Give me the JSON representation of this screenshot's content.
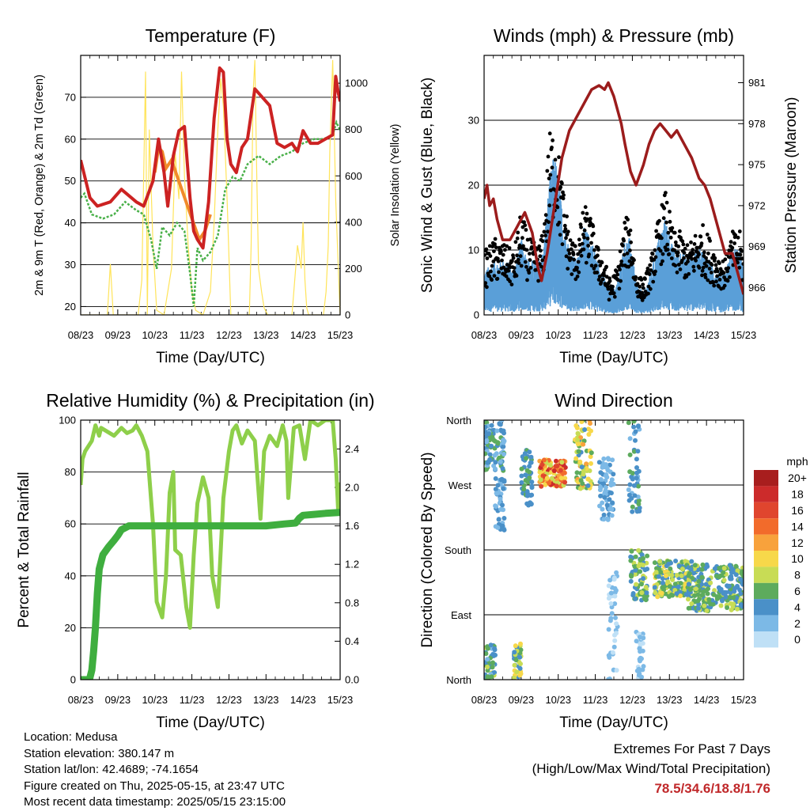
{
  "colors": {
    "temp_2m": "#cc2222",
    "temp_9m": "#f08a2a",
    "dewpoint": "#49b049",
    "insolation": "#ffe45a",
    "wind": "#5a9fd8",
    "gust": "#000000",
    "pressure": "#9b1c1c",
    "rh": "#8ecf4a",
    "rain": "#3fae3f"
  },
  "chart_data": [
    {
      "id": "temperature",
      "type": "line",
      "title": "Temperature (F)",
      "xlabel": "Time (Day/UTC)",
      "ylabel": "2m & 9m T (Red, Orange) & 2m Td (Green)",
      "y2label": "Solar Insolation (Yellow)",
      "xlim": [
        0,
        7
      ],
      "ylim": [
        18,
        80
      ],
      "y2lim": [
        0,
        1120
      ],
      "x_ticks": [
        "08/23",
        "09/23",
        "10/23",
        "11/23",
        "12/23",
        "13/23",
        "14/23",
        "15/23"
      ],
      "y_ticks": [
        20,
        30,
        40,
        50,
        60,
        70
      ],
      "y2_ticks": [
        0,
        200,
        400,
        600,
        800,
        1000
      ],
      "series": [
        {
          "name": "2m T",
          "color_key": "temp_2m",
          "x": [
            0,
            0.25,
            0.45,
            0.8,
            1.1,
            1.5,
            1.7,
            1.95,
            2.1,
            2.25,
            2.35,
            2.5,
            2.65,
            2.8,
            2.95,
            3.05,
            3.15,
            3.3,
            3.45,
            3.6,
            3.75,
            3.85,
            3.95,
            4.05,
            4.2,
            4.35,
            4.5,
            4.7,
            4.9,
            5.1,
            5.3,
            5.5,
            5.7,
            5.85,
            6.0,
            6.2,
            6.4,
            6.6,
            6.8,
            6.88,
            6.95,
            7.0
          ],
          "values": [
            55,
            46,
            44,
            45,
            48,
            45,
            44,
            50,
            60,
            52,
            44,
            56,
            62,
            63,
            46,
            38,
            36,
            34,
            45,
            65,
            77,
            76,
            60,
            54,
            52,
            58,
            60,
            72,
            70,
            68,
            59,
            58,
            59,
            57,
            62,
            59,
            59,
            60,
            61,
            75,
            71,
            69
          ]
        },
        {
          "name": "9m T",
          "color_key": "temp_9m",
          "x": [
            2.0,
            2.1,
            2.2,
            2.3,
            2.45,
            3.2,
            3.35,
            3.5
          ],
          "values": [
            52,
            58,
            57,
            53,
            55,
            36,
            38,
            42
          ]
        },
        {
          "name": "2m Td",
          "color_key": "dewpoint",
          "x": [
            0,
            0.1,
            0.3,
            0.6,
            0.9,
            1.2,
            1.5,
            1.7,
            1.9,
            2.05,
            2.2,
            2.4,
            2.6,
            2.8,
            2.95,
            3.05,
            3.15,
            3.3,
            3.5,
            3.7,
            3.9,
            4.1,
            4.3,
            4.5,
            4.8,
            5.1,
            5.4,
            5.7,
            6.0,
            6.3,
            6.55,
            6.8,
            6.9,
            7.0
          ],
          "values": [
            46,
            47,
            42,
            41,
            42,
            45,
            43,
            42,
            36,
            29,
            39,
            37,
            40,
            38,
            28,
            20,
            34,
            31,
            33,
            37,
            48,
            51,
            50,
            54,
            56,
            54,
            56,
            57,
            59,
            60,
            60,
            61,
            64,
            62
          ]
        },
        {
          "name": "Solar Insolation",
          "color_key": "insolation",
          "axis": "y2",
          "x": [
            0,
            0.3,
            0.5,
            0.72,
            0.8,
            0.88,
            1.05,
            1.55,
            1.65,
            1.75,
            1.8,
            1.85,
            1.95,
            2.05,
            2.25,
            2.45,
            2.55,
            2.65,
            2.72,
            2.8,
            2.9,
            3.0,
            3.1,
            3.3,
            3.5,
            3.6,
            3.7,
            3.78,
            3.85,
            3.95,
            4.05,
            4.25,
            4.55,
            4.6,
            4.65,
            4.7,
            4.75,
            4.8,
            4.88,
            4.95,
            5.05,
            5.5,
            5.7,
            5.85,
            5.95,
            6.0,
            6.05,
            6.1,
            6.15,
            6.25,
            6.55,
            6.62,
            6.68,
            6.72,
            6.8,
            6.88,
            6.95,
            7.0
          ],
          "values": [
            0,
            0,
            0,
            0,
            220,
            0,
            0,
            0,
            150,
            1050,
            0,
            800,
            300,
            20,
            0,
            200,
            700,
            500,
            1050,
            600,
            300,
            100,
            20,
            0,
            100,
            400,
            800,
            1020,
            900,
            500,
            0,
            0,
            0,
            300,
            950,
            1100,
            600,
            200,
            100,
            30,
            0,
            0,
            0,
            300,
            200,
            400,
            150,
            30,
            0,
            0,
            0,
            100,
            300,
            700,
            1100,
            500,
            200,
            0
          ]
        }
      ]
    },
    {
      "id": "winds",
      "type": "scatter",
      "title": "Winds (mph) & Pressure (mb)",
      "xlabel": "Time (Day/UTC)",
      "ylabel": "Sonic Wind & Gust (Blue, Black)",
      "y2label": "Station Pressure (Maroon)",
      "xlim": [
        0,
        7
      ],
      "ylim": [
        0,
        40
      ],
      "y2lim": [
        964,
        983
      ],
      "x_ticks": [
        "08/23",
        "09/23",
        "10/23",
        "11/23",
        "12/23",
        "13/23",
        "14/23",
        "15/23"
      ],
      "y_ticks": [
        0,
        10,
        20,
        30
      ],
      "y2_ticks": [
        966,
        969,
        972,
        975,
        978,
        981
      ],
      "gust_envelope": {
        "x": [
          0,
          0.3,
          0.6,
          0.8,
          1.0,
          1.2,
          1.45,
          1.6,
          1.75,
          1.9,
          2.1,
          2.3,
          2.5,
          2.7,
          2.9,
          3.05,
          3.2,
          3.4,
          3.6,
          3.8,
          3.95,
          4.1,
          4.3,
          4.5,
          4.7,
          4.9,
          5.1,
          5.3,
          5.5,
          5.7,
          5.9,
          6.1,
          6.3,
          6.5,
          6.7,
          6.9,
          7.0
        ],
        "values": [
          9,
          11,
          10,
          9,
          15,
          11,
          10,
          12,
          26,
          28,
          20,
          12,
          10,
          16,
          14,
          10,
          9,
          5,
          7,
          14,
          14,
          6,
          5,
          8,
          14,
          18,
          12,
          12,
          10,
          12,
          13,
          11,
          9,
          8,
          12,
          12,
          9
        ]
      },
      "series": [
        {
          "name": "Sonic Wind",
          "color_key": "wind",
          "x": [
            0,
            0.3,
            0.6,
            0.8,
            1.0,
            1.2,
            1.45,
            1.6,
            1.75,
            1.9,
            2.1,
            2.3,
            2.5,
            2.7,
            2.9,
            3.05,
            3.2,
            3.4,
            3.6,
            3.8,
            3.95,
            4.1,
            4.3,
            4.5,
            4.7,
            4.9,
            5.1,
            5.3,
            5.5,
            5.7,
            5.9,
            6.1,
            6.3,
            6.5,
            6.7,
            6.9,
            7.0
          ],
          "values": [
            4,
            5,
            5,
            4,
            7,
            5,
            5,
            6,
            12,
            15,
            10,
            6,
            5,
            8,
            7,
            5,
            4,
            2,
            3,
            7,
            7,
            3,
            2,
            4,
            7,
            9,
            6,
            6,
            5,
            6,
            6,
            5,
            4,
            4,
            6,
            6,
            4
          ]
        },
        {
          "name": "Station Pressure",
          "color_key": "pressure",
          "axis": "y2",
          "x": [
            0,
            0.08,
            0.15,
            0.25,
            0.35,
            0.5,
            0.7,
            0.9,
            1.1,
            1.3,
            1.45,
            1.55,
            1.7,
            1.9,
            2.1,
            2.3,
            2.5,
            2.7,
            2.9,
            3.1,
            3.25,
            3.35,
            3.5,
            3.7,
            3.8,
            3.95,
            4.1,
            4.3,
            4.45,
            4.6,
            4.75,
            4.9,
            5.05,
            5.2,
            5.4,
            5.6,
            5.8,
            5.95,
            6.1,
            6.3,
            6.5,
            6.7,
            6.85,
            6.95,
            7.0
          ],
          "values": [
            972.5,
            973.5,
            972.0,
            972.5,
            971.0,
            969.5,
            969.5,
            970.5,
            971.5,
            970.0,
            967.5,
            966.5,
            968.5,
            972.0,
            975.5,
            977.5,
            978.5,
            979.5,
            980.5,
            980.8,
            980.5,
            981.0,
            980.0,
            978.0,
            976.5,
            974.5,
            973.5,
            975.0,
            976.5,
            977.5,
            978.0,
            977.5,
            977.0,
            977.5,
            976.5,
            975.5,
            974.0,
            973.5,
            972.5,
            970.5,
            968.5,
            968.5,
            967.0,
            966.0,
            965.5
          ]
        }
      ]
    },
    {
      "id": "humidity",
      "type": "line",
      "title": "Relative Humidity (%) & Precipitation (in)",
      "xlabel": "Time (Day/UTC)",
      "ylabel": "Percent & Total Rainfall",
      "xlim": [
        0,
        7
      ],
      "ylim": [
        0,
        100
      ],
      "y2lim": [
        0,
        2.7
      ],
      "x_ticks": [
        "08/23",
        "09/23",
        "10/23",
        "11/23",
        "12/23",
        "13/23",
        "14/23",
        "15/23"
      ],
      "y_ticks": [
        0,
        20,
        40,
        60,
        80,
        100
      ],
      "y2_ticks": [
        0.0,
        0.4,
        0.8,
        1.2,
        1.6,
        2.0,
        2.4
      ],
      "series": [
        {
          "name": "Relative Humidity",
          "color_key": "rh",
          "x": [
            0,
            0.05,
            0.12,
            0.3,
            0.4,
            0.5,
            0.55,
            0.9,
            1.1,
            1.25,
            1.4,
            1.5,
            1.65,
            1.8,
            1.95,
            2.05,
            2.2,
            2.3,
            2.4,
            2.5,
            2.55,
            2.7,
            2.85,
            2.95,
            3.05,
            3.15,
            3.3,
            3.45,
            3.55,
            3.7,
            3.85,
            4.0,
            4.1,
            4.2,
            4.35,
            4.5,
            4.7,
            4.85,
            4.95,
            5.1,
            5.3,
            5.45,
            5.55,
            5.6,
            5.75,
            5.9,
            6.05,
            6.2,
            6.4,
            6.6,
            6.8,
            6.88,
            6.95,
            7.0
          ],
          "values": [
            75,
            85,
            88,
            92,
            98,
            94,
            97,
            94,
            97,
            95,
            96,
            98,
            94,
            88,
            60,
            30,
            24,
            40,
            72,
            80,
            50,
            48,
            28,
            20,
            48,
            68,
            78,
            70,
            40,
            28,
            70,
            88,
            96,
            98,
            91,
            96,
            92,
            62,
            88,
            94,
            90,
            98,
            92,
            70,
            97,
            98,
            85,
            100,
            98,
            100,
            100,
            85,
            64,
            76
          ]
        },
        {
          "name": "Total Precipitation",
          "color_key": "rain",
          "axis": "y2",
          "x": [
            0,
            0.2,
            0.25,
            0.3,
            0.35,
            0.4,
            0.45,
            0.5,
            0.6,
            0.75,
            0.9,
            1.0,
            1.1,
            1.2,
            1.3,
            1.45,
            2.0,
            3.0,
            4.0,
            5.0,
            5.5,
            5.8,
            5.9,
            6.0,
            6.3,
            6.6,
            7.0
          ],
          "values": [
            0,
            0,
            0.02,
            0.1,
            0.3,
            0.55,
            0.9,
            1.15,
            1.3,
            1.38,
            1.45,
            1.5,
            1.56,
            1.58,
            1.6,
            1.6,
            1.6,
            1.6,
            1.6,
            1.6,
            1.62,
            1.63,
            1.68,
            1.71,
            1.72,
            1.73,
            1.74
          ]
        }
      ]
    },
    {
      "id": "wind_direction",
      "type": "scatter",
      "title": "Wind Direction",
      "xlabel": "Time (Day/UTC)",
      "ylabel": "Direction (Colored By Speed)",
      "xlim": [
        0,
        7
      ],
      "ylim": [
        0,
        360
      ],
      "x_ticks": [
        "08/23",
        "09/23",
        "10/23",
        "11/23",
        "12/23",
        "13/23",
        "14/23",
        "15/23"
      ],
      "y_ticks": [
        "North",
        "East",
        "South",
        "West",
        "North"
      ],
      "legend": {
        "title": "mph",
        "labels": [
          "20+",
          "18",
          "16",
          "14",
          "12",
          "10",
          "8",
          "6",
          "4",
          "2",
          "0"
        ],
        "colors": [
          "#a81e1e",
          "#cc2b2b",
          "#e0452e",
          "#f26b2b",
          "#f8a23c",
          "#f7d84a",
          "#c8dc55",
          "#5dab5d",
          "#4a90c8",
          "#7cb9e6",
          "#bfe0f6"
        ]
      },
      "clusters": [
        {
          "x": [
            0.0,
            0.55
          ],
          "dir": [
            290,
            360
          ],
          "speed": [
            2,
            7
          ]
        },
        {
          "x": [
            0.0,
            0.3
          ],
          "dir": [
            0,
            50
          ],
          "speed": [
            2,
            8
          ]
        },
        {
          "x": [
            0.3,
            0.55
          ],
          "dir": [
            200,
            280
          ],
          "speed": [
            1,
            5
          ]
        },
        {
          "x": [
            0.8,
            1.0
          ],
          "dir": [
            0,
            50
          ],
          "speed": [
            3,
            11
          ]
        },
        {
          "x": [
            1.0,
            1.3
          ],
          "dir": [
            240,
            320
          ],
          "speed": [
            3,
            6
          ]
        },
        {
          "x": [
            1.5,
            2.2
          ],
          "dir": [
            268,
            305
          ],
          "speed": [
            8,
            19
          ]
        },
        {
          "x": [
            2.45,
            2.9
          ],
          "dir": [
            265,
            360
          ],
          "speed": [
            4,
            12
          ]
        },
        {
          "x": [
            3.1,
            3.5
          ],
          "dir": [
            220,
            310
          ],
          "speed": [
            1,
            4
          ]
        },
        {
          "x": [
            3.35,
            3.6
          ],
          "dir": [
            0,
            150
          ],
          "speed": [
            0,
            3
          ]
        },
        {
          "x": [
            3.9,
            4.2
          ],
          "dir": [
            230,
            360
          ],
          "speed": [
            2,
            6
          ]
        },
        {
          "x": [
            4.1,
            4.3
          ],
          "dir": [
            0,
            70
          ],
          "speed": [
            0,
            2
          ]
        },
        {
          "x": [
            3.95,
            4.4
          ],
          "dir": [
            110,
            180
          ],
          "speed": [
            3,
            9
          ]
        },
        {
          "x": [
            4.6,
            5.6
          ],
          "dir": [
            115,
            165
          ],
          "speed": [
            3,
            10
          ]
        },
        {
          "x": [
            5.5,
            7.0
          ],
          "dir": [
            95,
            160
          ],
          "speed": [
            3,
            8
          ]
        }
      ]
    }
  ],
  "info": {
    "location": "Location: Medusa",
    "elevation": "Station elevation: 380.147 m",
    "latlon": "Station lat/lon: 42.4689; -74.1654",
    "created": "Figure created on Thu, 2025-05-15, at 23:47 UTC",
    "recent": "Most recent data timestamp: 2025/05/15 23:15:00"
  },
  "extremes": {
    "title": "Extremes For Past 7 Days",
    "subtitle": "(High/Low/Max Wind/Total Precipitation)",
    "values": "78.5/34.6/18.8/1.76"
  }
}
